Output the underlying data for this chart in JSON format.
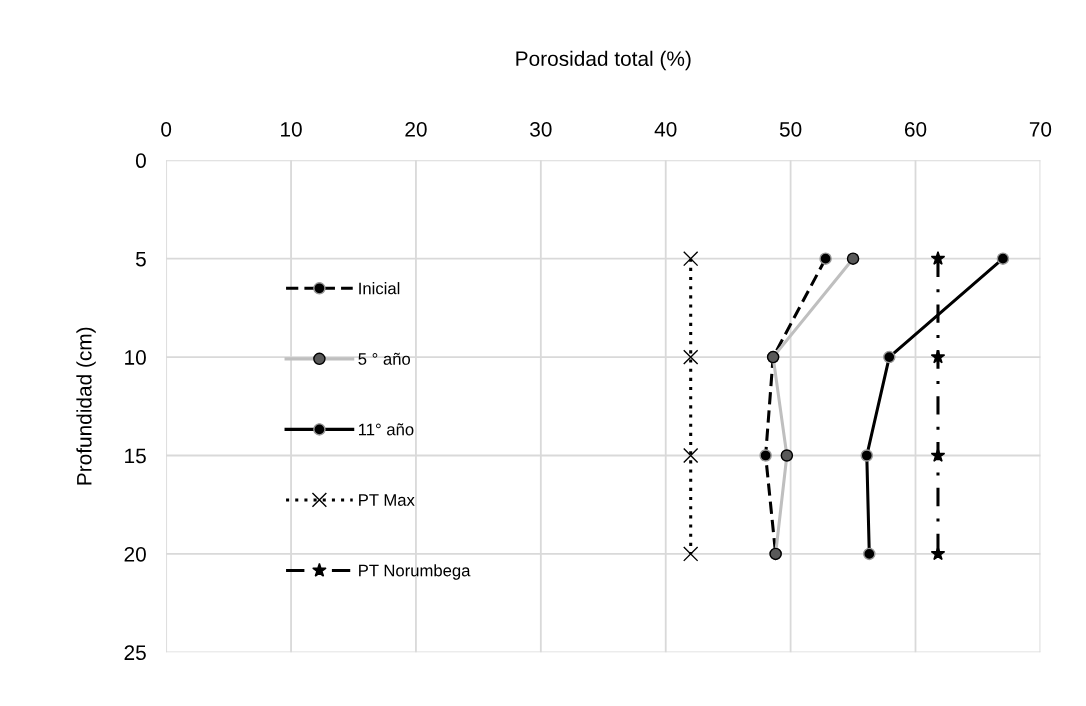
{
  "chart_data": {
    "type": "line",
    "orientation": "horizontal",
    "xlabel": "Porosidad total (%)",
    "ylabel": "Profundidad (cm)",
    "x": [
      5,
      10,
      15,
      20
    ],
    "xlim": [
      0,
      70
    ],
    "xticks": [
      0,
      10,
      20,
      30,
      40,
      50,
      60,
      70
    ],
    "ylim": [
      25,
      0
    ],
    "yticks": [
      0,
      5,
      10,
      15,
      20,
      25
    ],
    "grid": true,
    "legend": "left",
    "series": [
      {
        "name": "Inicial",
        "color": "#000000",
        "marker": "circle",
        "line_style": "dashed",
        "values": [
          52.8,
          48.6,
          48.0,
          48.8
        ]
      },
      {
        "name": "5 ° año",
        "color": "#bfbfbf",
        "marker": "circle",
        "line_style": "solid",
        "values": [
          55.0,
          48.6,
          49.7,
          48.8
        ]
      },
      {
        "name": "11° año",
        "color": "#000000",
        "marker": "circle",
        "line_style": "solid",
        "values": [
          67.0,
          57.9,
          56.1,
          56.3
        ]
      },
      {
        "name": "PT Max",
        "color": "#000000",
        "marker": "cross",
        "line_style": "dotted",
        "values": [
          42,
          42,
          42,
          42
        ]
      },
      {
        "name": "PT Norumbega",
        "color": "#000000",
        "marker": "star",
        "line_style": "dashdot",
        "values": [
          61.8,
          61.8,
          61.8,
          61.8
        ]
      }
    ]
  }
}
